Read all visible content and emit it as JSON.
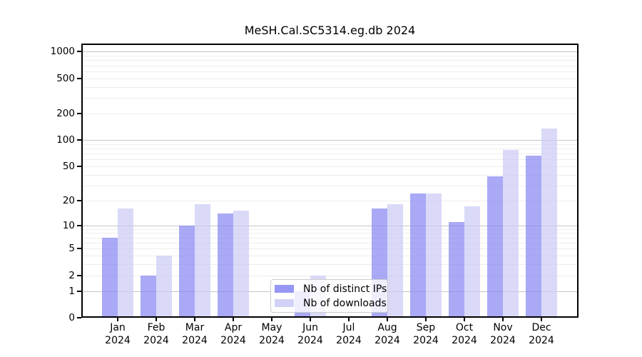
{
  "chart_data": {
    "type": "bar",
    "title": "MeSH.Cal.SC5314.eg.db 2024",
    "categories": [
      "Jan",
      "Feb",
      "Mar",
      "Apr",
      "May",
      "Jun",
      "Jul",
      "Aug",
      "Sep",
      "Oct",
      "Nov",
      "Dec"
    ],
    "x_year_label": "2024",
    "series": [
      {
        "name": "Nb of distinct IPs",
        "color": "#8484f2",
        "values": [
          7,
          2,
          10,
          14,
          0,
          1,
          0,
          16,
          24,
          11,
          38,
          66
        ]
      },
      {
        "name": "Nb of downloads",
        "color": "#cacaf5",
        "values": [
          16,
          4,
          18,
          15,
          0,
          2,
          0,
          18,
          24,
          17,
          77,
          135
        ]
      }
    ],
    "yscale": "log10(value+1)",
    "yticks": [
      0,
      1,
      2,
      5,
      10,
      20,
      50,
      100,
      200,
      500,
      1000
    ],
    "ylim": [
      0,
      1234
    ],
    "grid": "horizontal log major+minor",
    "legend_position": "inside bottom-center",
    "spine_color": "#000000",
    "gridline_minor_color": "#ededed",
    "gridline_major_color": "#c6c6c6"
  }
}
